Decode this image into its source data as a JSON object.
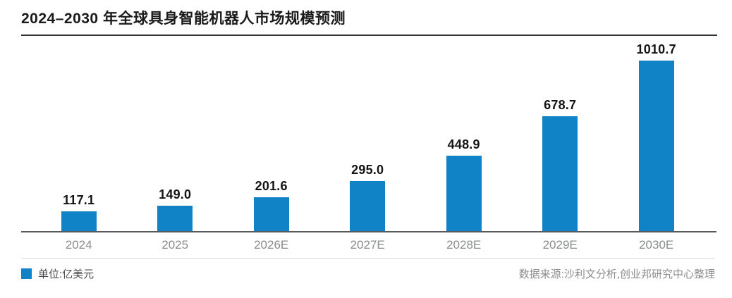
{
  "header": {
    "title": "2024–2030 年全球具身智能机器人市场规模预测"
  },
  "legend": {
    "label": "单位:亿美元"
  },
  "footer": {
    "source": "数据来源:沙利文分析,创业邦研究中心整理"
  },
  "colors": {
    "bar": "#1082C6",
    "title_text": "#1a1a1a",
    "title_underline": "#2f3133",
    "axis_line": "#595b5e",
    "x_label_text": "#8a8c8e",
    "value_label_text": "#141414",
    "legend_text": "#4b4b4b",
    "source_text": "#8c8c8c",
    "separator_line": "#dbdbdb",
    "background": "#ffffff"
  },
  "chart_data": {
    "type": "bar",
    "title": "2024–2030 年全球具身智能机器人市场规模预测",
    "categories": [
      "2024",
      "2025",
      "2026E",
      "2027E",
      "2028E",
      "2029E",
      "2030E"
    ],
    "values": [
      117.1,
      149.0,
      201.6,
      295.0,
      448.9,
      678.7,
      1010.7
    ],
    "value_labels": [
      "117.1",
      "149.0",
      "201.6",
      "295.0",
      "448.9",
      "678.7",
      "1010.7"
    ],
    "xlabel": "",
    "ylabel": "亿美元",
    "unit": "亿美元",
    "ylim": [
      0,
      1100
    ],
    "grid": false,
    "bar_color": "#1082C6",
    "legend_position": "bottom-left",
    "value_labels_shown": true,
    "y_axis_shown": false
  }
}
